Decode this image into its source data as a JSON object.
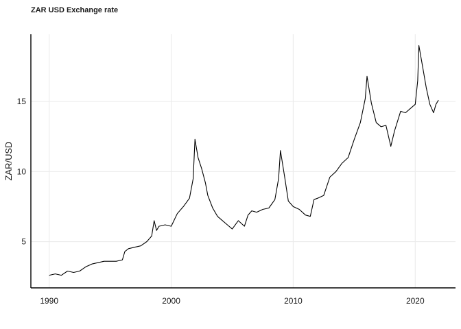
{
  "chart_data": {
    "type": "line",
    "title": "ZAR USD Exchange rate",
    "xlabel": "",
    "ylabel": "ZAR/USD",
    "x_ticks": [
      1990,
      2000,
      2010,
      2020
    ],
    "y_ticks": [
      5,
      10,
      15
    ],
    "xlim": [
      1988.5,
      2023.3
    ],
    "ylim": [
      1.7,
      19.8
    ],
    "grid": true,
    "legend": "none",
    "line_color": "#000000",
    "series": [
      {
        "x": [
          1990.0,
          1990.5,
          1991.0,
          1991.5,
          1992.0,
          1992.5,
          1993.0,
          1993.5,
          1994.0,
          1994.5,
          1995.0,
          1995.5,
          1996.0,
          1996.2,
          1996.5,
          1997.0,
          1997.5,
          1998.0,
          1998.4,
          1998.6,
          1998.8,
          1999.0,
          1999.5,
          2000.0,
          2000.5,
          2001.0,
          2001.5,
          2001.8,
          2001.95,
          2002.2,
          2002.5,
          2002.8,
          2003.0,
          2003.4,
          2003.8,
          2004.2,
          2004.6,
          2005.0,
          2005.5,
          2006.0,
          2006.3,
          2006.6,
          2007.0,
          2007.5,
          2008.0,
          2008.5,
          2008.8,
          2008.95,
          2009.3,
          2009.6,
          2010.0,
          2010.5,
          2011.0,
          2011.4,
          2011.7,
          2012.0,
          2012.5,
          2013.0,
          2013.5,
          2014.0,
          2014.5,
          2015.0,
          2015.5,
          2015.9,
          2016.05,
          2016.4,
          2016.8,
          2017.2,
          2017.6,
          2018.0,
          2018.3,
          2018.8,
          2019.2,
          2019.6,
          2020.0,
          2020.2,
          2020.3,
          2020.6,
          2020.9,
          2021.2,
          2021.5,
          2021.7,
          2021.9
        ],
        "y": [
          2.6,
          2.7,
          2.6,
          2.9,
          2.8,
          2.9,
          3.2,
          3.4,
          3.5,
          3.6,
          3.6,
          3.6,
          3.7,
          4.3,
          4.5,
          4.6,
          4.7,
          5.0,
          5.4,
          6.5,
          5.8,
          6.1,
          6.2,
          6.1,
          7.0,
          7.5,
          8.1,
          9.5,
          12.3,
          11.0,
          10.2,
          9.2,
          8.3,
          7.4,
          6.8,
          6.5,
          6.2,
          5.9,
          6.5,
          6.1,
          6.9,
          7.2,
          7.1,
          7.3,
          7.4,
          8.0,
          9.5,
          11.5,
          9.6,
          7.9,
          7.5,
          7.3,
          6.9,
          6.8,
          8.0,
          8.1,
          8.3,
          9.6,
          10.0,
          10.6,
          11.0,
          12.3,
          13.5,
          15.2,
          16.8,
          14.9,
          13.5,
          13.2,
          13.3,
          11.8,
          12.9,
          14.3,
          14.2,
          14.5,
          14.8,
          16.5,
          19.0,
          17.5,
          16.0,
          14.8,
          14.2,
          14.8,
          15.1
        ]
      }
    ]
  }
}
